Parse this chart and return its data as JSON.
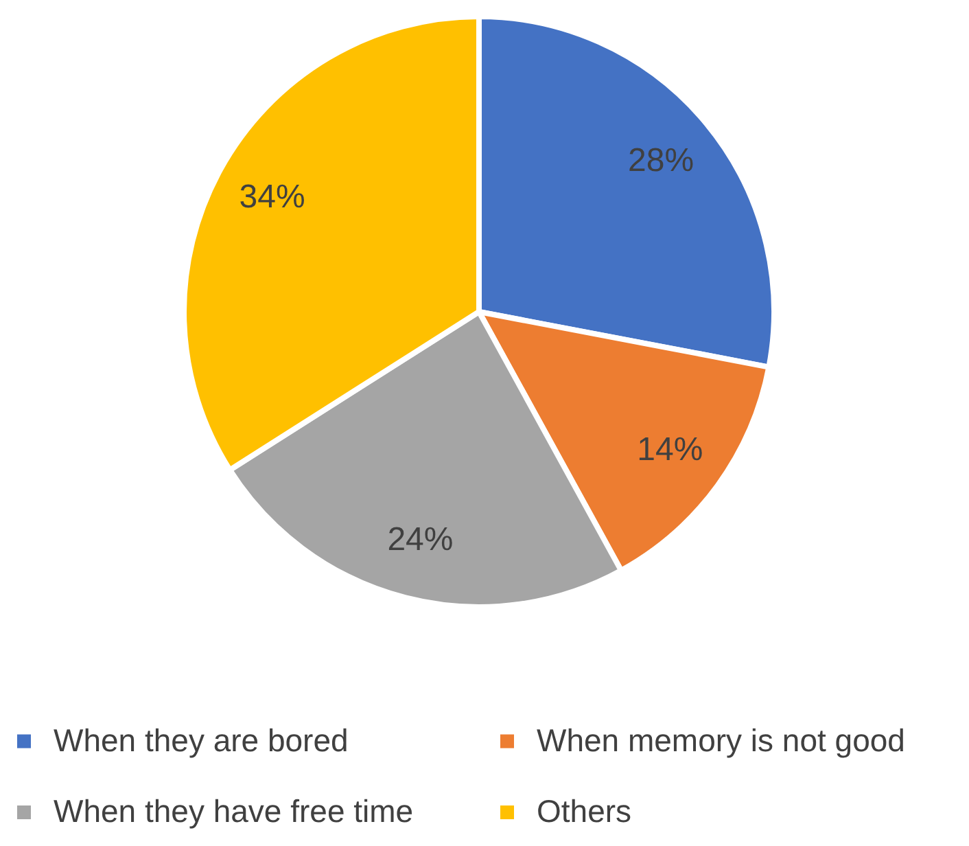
{
  "chart_data": {
    "type": "pie",
    "categories": [
      "When they are bored",
      "When memory is not good",
      "When they have free time",
      "Others"
    ],
    "values": [
      28,
      14,
      24,
      34
    ],
    "colors": [
      "#4472c4",
      "#ed7d31",
      "#a5a5a5",
      "#ffc000"
    ],
    "value_labels": [
      "28%",
      "14%",
      "24%",
      "34%"
    ],
    "legend": "bottom"
  }
}
